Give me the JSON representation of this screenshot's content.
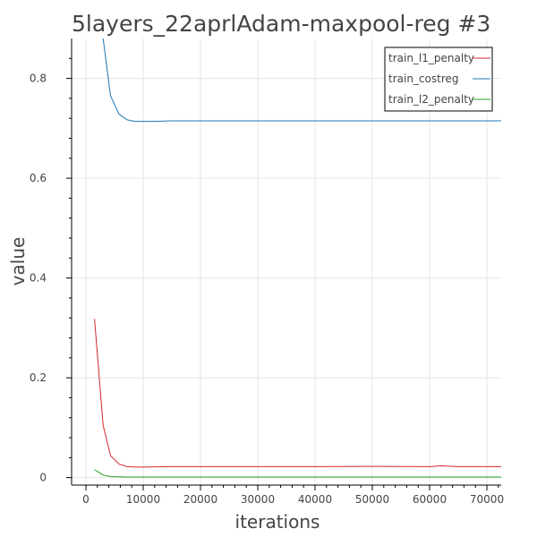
{
  "chart_data": {
    "type": "line",
    "title": "5layers_22aprlAdam-maxpool-reg #3",
    "xlabel": "iterations",
    "ylabel": "value",
    "xlim": [
      -2500,
      72500
    ],
    "ylim": [
      -0.015,
      0.88
    ],
    "grid": true,
    "legend_position": "top-right",
    "x_ticks": [
      0,
      10000,
      20000,
      30000,
      40000,
      50000,
      60000,
      70000
    ],
    "x_tick_labels": [
      "0",
      "10000",
      "20000",
      "30000",
      "40000",
      "50000",
      "60000",
      "70000"
    ],
    "y_ticks": [
      0,
      0.2,
      0.4,
      0.6,
      0.8
    ],
    "y_tick_labels": [
      "0",
      "0.2",
      "0.4",
      "0.6",
      "0.8"
    ],
    "x": [
      1500,
      3000,
      4300,
      5800,
      7200,
      8600,
      10000,
      12000,
      15000,
      20000,
      30000,
      40000,
      50000,
      60000,
      62000,
      65000,
      70000,
      72500
    ],
    "series": [
      {
        "name": "train_l1_penalty",
        "color": "#d62728",
        "values": [
          0.318,
          0.105,
          0.044,
          0.027,
          0.022,
          0.021,
          0.021,
          0.0215,
          0.022,
          0.022,
          0.022,
          0.022,
          0.0225,
          0.022,
          0.0235,
          0.022,
          0.022,
          0.022
        ]
      },
      {
        "name": "train_costreg",
        "color": "#1f77b4",
        "values": [
          0.95,
          0.88,
          0.765,
          0.728,
          0.717,
          0.714,
          0.714,
          0.714,
          0.715,
          0.715,
          0.715,
          0.715,
          0.715,
          0.715,
          0.715,
          0.715,
          0.715,
          0.715
        ]
      },
      {
        "name": "train_l2_penalty",
        "color": "#2ca02c",
        "values": [
          0.016,
          0.005,
          0.002,
          0.0015,
          0.0012,
          0.0012,
          0.0012,
          0.0012,
          0.0012,
          0.0012,
          0.0012,
          0.0012,
          0.0012,
          0.0012,
          0.0012,
          0.0012,
          0.0012,
          0.0012
        ]
      }
    ]
  }
}
